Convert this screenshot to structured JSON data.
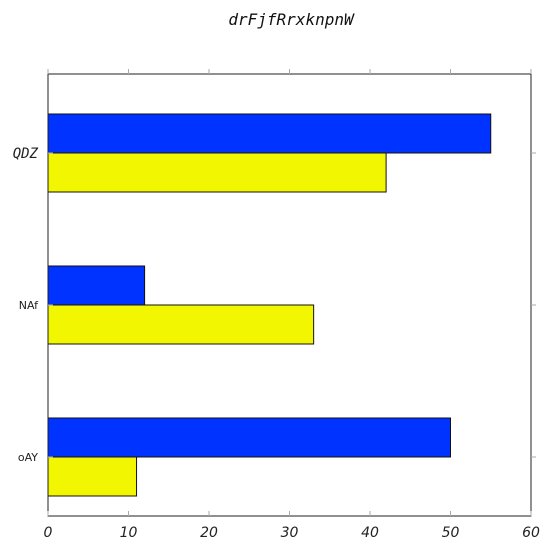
{
  "colors": {
    "series_a": "#0033ff",
    "series_b": "#f2f600",
    "axis": "#222222",
    "tick": "#aaaaaa"
  },
  "chart_data": {
    "type": "bar",
    "orientation": "horizontal",
    "title": "drFjfRrxknpnW",
    "xlabel": "",
    "ylabel": "",
    "categories": [
      "QDZ",
      "NAf",
      "oAY"
    ],
    "series": [
      {
        "color": "#0033ff",
        "values": [
          55,
          12,
          50
        ]
      },
      {
        "color": "#f2f600",
        "values": [
          42,
          33,
          11
        ]
      }
    ],
    "xlim": [
      0,
      60
    ],
    "xticks": [
      0,
      10,
      20,
      30,
      40,
      50,
      60
    ],
    "grid": false,
    "legend": "none"
  }
}
